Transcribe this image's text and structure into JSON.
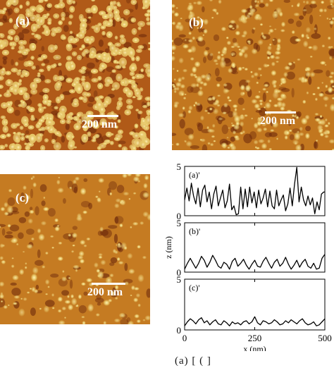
{
  "panels": {
    "a": {
      "label": "(a)",
      "scale": "200 nm"
    },
    "b": {
      "label": "(b)",
      "scale": "200 nm"
    },
    "c": {
      "label": "(c)",
      "scale": "200 nm"
    }
  },
  "colors": {
    "background": "#b3651c",
    "dark": "#6e2a0c",
    "grain": "#e7c86a",
    "highlight": "#fff3b8"
  },
  "chart_data": {
    "type": "line",
    "xlabel": "x (nm)",
    "ylabel": "z (nm)",
    "xlim": [
      0,
      500
    ],
    "ylim": [
      0,
      5
    ],
    "xticks": [
      "0",
      "250",
      "500"
    ],
    "yticks": [
      "0",
      "5"
    ],
    "grid": false,
    "series": [
      {
        "name": "(a)'",
        "x": [
          0,
          8,
          16,
          24,
          32,
          40,
          48,
          56,
          64,
          72,
          80,
          88,
          96,
          104,
          112,
          120,
          128,
          136,
          144,
          152,
          160,
          168,
          176,
          184,
          192,
          200,
          208,
          216,
          224,
          232,
          240,
          248,
          256,
          264,
          272,
          280,
          288,
          296,
          304,
          312,
          320,
          328,
          336,
          344,
          352,
          360,
          368,
          376,
          384,
          392,
          400,
          408,
          416,
          424,
          432,
          440,
          448,
          456,
          464,
          472,
          480,
          488,
          496,
          500
        ],
        "values": [
          1.6,
          2.8,
          1.5,
          3.3,
          2.0,
          1.2,
          2.8,
          0.9,
          2.6,
          3.1,
          1.4,
          2.4,
          0.7,
          2.2,
          3.0,
          1.0,
          1.8,
          2.6,
          0.8,
          1.5,
          3.2,
          0.6,
          1.0,
          0.1,
          0.2,
          2.9,
          0.7,
          2.7,
          0.9,
          2.9,
          1.3,
          2.4,
          0.8,
          2.6,
          1.2,
          1.8,
          2.7,
          0.9,
          2.5,
          1.0,
          0.7,
          2.6,
          1.0,
          1.6,
          2.1,
          0.5,
          1.2,
          2.8,
          1.0,
          3.2,
          4.9,
          1.4,
          2.9,
          1.6,
          1.0,
          2.0,
          1.1,
          1.8,
          0.2,
          1.4,
          0.6,
          2.2,
          2.4,
          2.4
        ]
      },
      {
        "name": "(b)'",
        "x": [
          0,
          10,
          20,
          30,
          40,
          50,
          60,
          70,
          80,
          90,
          100,
          110,
          120,
          130,
          140,
          150,
          160,
          170,
          180,
          190,
          200,
          210,
          220,
          230,
          240,
          250,
          260,
          270,
          280,
          290,
          300,
          310,
          320,
          330,
          340,
          350,
          360,
          370,
          380,
          390,
          400,
          410,
          420,
          430,
          440,
          450,
          460,
          470,
          480,
          490,
          500
        ],
        "values": [
          0.3,
          0.9,
          1.4,
          0.9,
          0.4,
          0.9,
          1.6,
          1.2,
          0.5,
          1.0,
          1.7,
          1.2,
          0.6,
          0.4,
          1.0,
          0.8,
          0.3,
          1.1,
          1.4,
          0.6,
          0.9,
          1.3,
          0.7,
          0.3,
          0.8,
          1.2,
          0.6,
          0.5,
          1.1,
          1.5,
          0.9,
          0.4,
          1.0,
          1.3,
          0.6,
          0.9,
          1.5,
          0.8,
          0.3,
          0.7,
          1.2,
          0.5,
          1.0,
          1.3,
          0.6,
          0.4,
          0.9,
          0.3,
          0.4,
          1.4,
          1.8
        ]
      },
      {
        "name": "(c)'",
        "x": [
          0,
          10,
          20,
          30,
          40,
          50,
          60,
          70,
          80,
          90,
          100,
          110,
          120,
          130,
          140,
          150,
          160,
          170,
          180,
          190,
          200,
          210,
          220,
          230,
          240,
          250,
          260,
          270,
          280,
          290,
          300,
          310,
          320,
          330,
          340,
          350,
          360,
          370,
          380,
          390,
          400,
          410,
          420,
          430,
          440,
          450,
          460,
          470,
          480,
          490,
          500
        ],
        "values": [
          0.4,
          0.8,
          1.1,
          0.9,
          0.6,
          1.0,
          1.2,
          0.7,
          0.9,
          0.5,
          0.8,
          1.0,
          0.6,
          0.5,
          0.9,
          0.7,
          0.4,
          0.8,
          0.6,
          0.7,
          0.5,
          0.8,
          0.9,
          0.6,
          0.8,
          1.3,
          0.7,
          0.5,
          0.9,
          0.8,
          0.6,
          0.7,
          1.0,
          0.8,
          0.5,
          0.6,
          0.9,
          0.7,
          1.0,
          0.8,
          0.6,
          0.9,
          1.1,
          0.7,
          0.5,
          0.6,
          0.8,
          0.4,
          0.5,
          0.8,
          1.1
        ]
      }
    ]
  },
  "caption_fragment": "(a)  [                    (                    ]"
}
